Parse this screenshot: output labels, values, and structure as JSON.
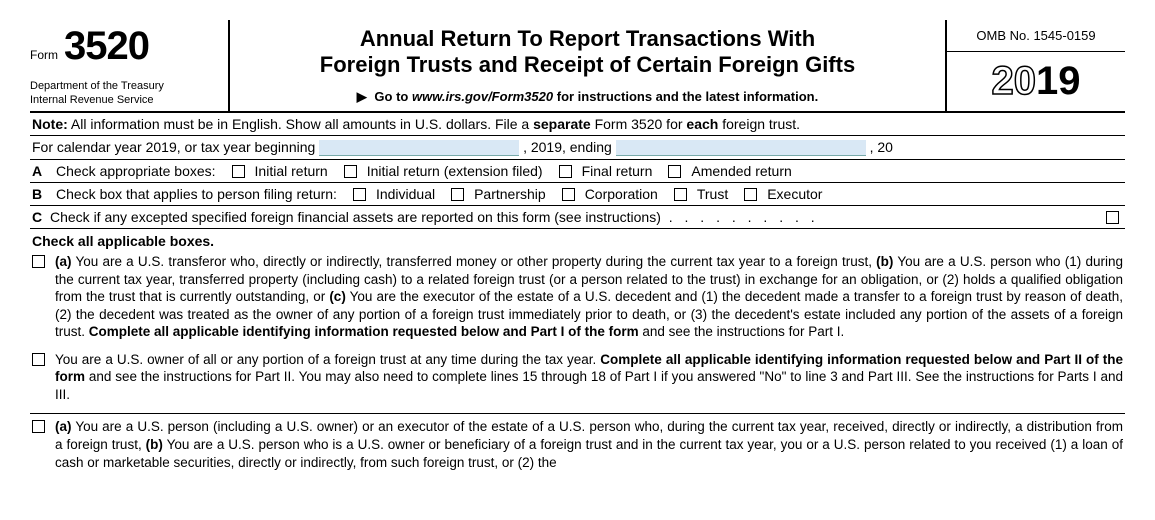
{
  "header": {
    "form_word": "Form",
    "form_number": "3520",
    "dept_line1": "Department of the Treasury",
    "dept_line2": "Internal Revenue Service",
    "title_line1": "Annual Return To Report Transactions With",
    "title_line2": "Foreign Trusts and Receipt of Certain Foreign Gifts",
    "goto_prefix": "Go to",
    "goto_url": "www.irs.gov/Form3520",
    "goto_suffix": "for instructions and the latest information.",
    "omb": "OMB No. 1545-0159",
    "year_prefix": "20",
    "year_suffix": "19"
  },
  "note": {
    "label": "Note:",
    "text_a": " All information must be in English. Show all amounts in U.S. dollars. File a ",
    "text_b": "separate",
    "text_c": " Form 3520 for ",
    "text_d": "each",
    "text_e": " foreign trust."
  },
  "calendar": {
    "prefix": "For calendar year 2019, or tax year beginning",
    "mid": ", 2019, ending",
    "suffix": ", 20"
  },
  "rowA": {
    "letter": "A",
    "label": "Check appropriate boxes:",
    "opt1": "Initial return",
    "opt2": "Initial return (extension filed)",
    "opt3": "Final return",
    "opt4": "Amended return"
  },
  "rowB": {
    "letter": "B",
    "label": "Check box that applies to person filing return:",
    "opt1": "Individual",
    "opt2": "Partnership",
    "opt3": "Corporation",
    "opt4": "Trust",
    "opt5": "Executor"
  },
  "rowC": {
    "letter": "C",
    "text": "Check if any excepted specified foreign financial assets are reported on this form (see instructions)",
    "dots": ".  .  .  .  .  .  .  .  .  ."
  },
  "check_header": "Check all applicable boxes.",
  "para1": {
    "a_label": "(a)",
    "a_text": " You are a U.S. transferor who, directly or indirectly, transferred money or other property during the current tax year to a foreign trust, ",
    "b_label": "(b)",
    "b_text": " You are a U.S. person who (1) during the current tax year, transferred property (including cash) to a related foreign trust (or a person related to the trust) in exchange for an obligation, or (2) holds a qualified obligation from the trust that is currently outstanding, or ",
    "c_label": "(c)",
    "c_text": " You are the executor of the estate of a U.S. decedent and (1) the decedent made a transfer to a foreign trust by reason of death, (2) the decedent was treated as the owner of any portion of a foreign trust immediately prior to death, or (3) the decedent's estate included any portion of the assets of a foreign trust. ",
    "bold_tail": "Complete all applicable identifying information requested below and Part I of the form",
    "tail": " and see the instructions for Part I."
  },
  "para2": {
    "lead": "You are a U.S. owner of all or any portion of a foreign trust at any time during the tax year. ",
    "bold": "Complete all applicable identifying information requested below and Part II of the form",
    "tail": " and see the instructions for Part II. You may also need to complete lines 15 through 18 of Part I if you answered \"No\" to line 3 and Part III. See the instructions for Parts I and III."
  },
  "para3": {
    "a_label": "(a)",
    "a_text": " You are a U.S. person (including a U.S. owner) or an executor of the estate of a U.S. person who, during the current tax year, received, directly or indirectly, a distribution from a foreign trust, ",
    "b_label": "(b)",
    "b_text": " You are a  U.S. person who is a U.S. owner or beneficiary of a foreign trust and in the current tax year, you or a U.S. person related to you received (1) a loan of cash or marketable securities, directly or indirectly, from such foreign trust, or (2) the"
  }
}
